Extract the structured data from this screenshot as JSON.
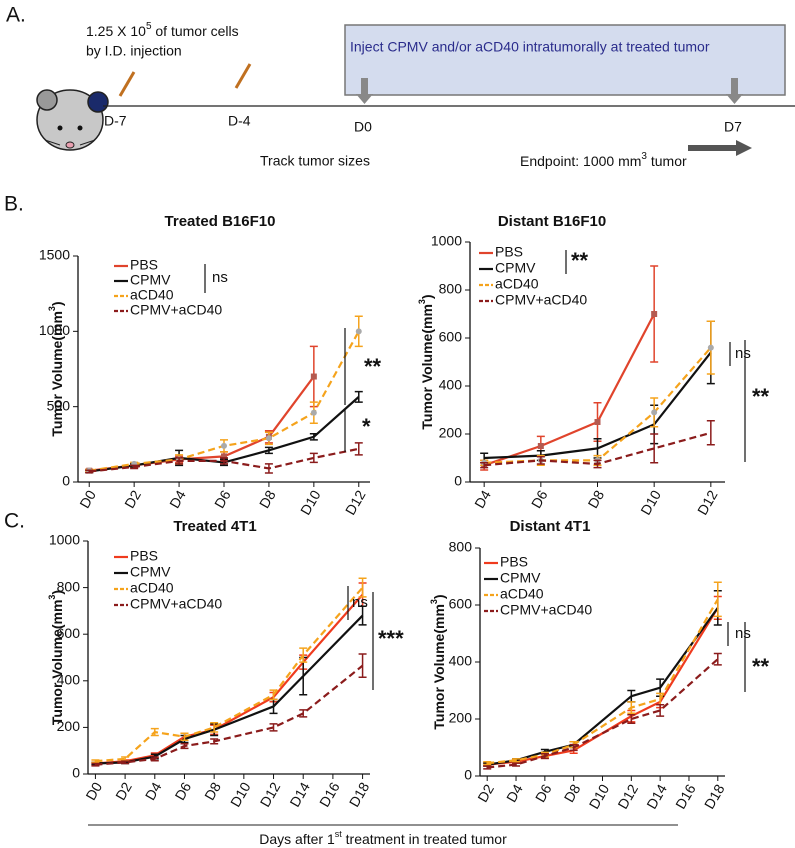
{
  "panel_labels": [
    "A.",
    "B.",
    "C."
  ],
  "panel_a": {
    "cells_pre": "1.25 X 10",
    "cells_sup": "5",
    "cells_post": " of tumor cells",
    "cells_line2": "by I.D. injection",
    "box_text": "Inject CPMV and/or aCD40 intratumorally at treated tumor",
    "timepoints": [
      "D-7",
      "D-4",
      "D0",
      "D7"
    ],
    "track": "Track tumor sizes",
    "endpoint_pre": "Endpoint: 1000 mm",
    "endpoint_sup": "3",
    "endpoint_post": " tumor"
  },
  "footer": {
    "pre": "Days after 1",
    "sup": "st",
    "post": " treatment in treated tumor"
  },
  "chart_data": [
    {
      "type": "line",
      "title": "Treated B16F10",
      "ylabel": "Tumor Volume(mm",
      "ylabel_sup": "3",
      "ylabel_end": ")",
      "x": [
        0,
        2,
        4,
        6,
        8,
        10,
        12
      ],
      "xlim": [
        -0.5,
        12.5
      ],
      "xticks": [
        {
          "value": 0,
          "label": "D0"
        },
        {
          "value": 2,
          "label": "D2"
        },
        {
          "value": 4,
          "label": "D4"
        },
        {
          "value": 6,
          "label": "D6"
        },
        {
          "value": 8,
          "label": "D8"
        },
        {
          "value": 10,
          "label": "D10"
        },
        {
          "value": 12,
          "label": "D12"
        }
      ],
      "ylim": [
        0,
        1500
      ],
      "yticks": [
        0,
        500,
        1000,
        1500
      ],
      "annotations": [
        "ns",
        "**",
        "*"
      ],
      "series": [
        {
          "name": "PBS",
          "color": "#e0442c",
          "dash": false,
          "marker": "square",
          "values": [
            75,
            110,
            150,
            170,
            300,
            700,
            null
          ],
          "errors": [
            10,
            15,
            20,
            30,
            40,
            200,
            null
          ]
        },
        {
          "name": "CPMV",
          "color": "#111111",
          "dash": false,
          "marker": "none",
          "values": [
            70,
            110,
            160,
            130,
            210,
            300,
            565
          ],
          "errors": [
            8,
            10,
            50,
            20,
            20,
            20,
            35
          ]
        },
        {
          "name": "aCD40",
          "color": "#f5a31c",
          "dash": true,
          "marker": "circle",
          "values": [
            75,
            120,
            150,
            240,
            290,
            460,
            1000
          ],
          "errors": [
            8,
            10,
            30,
            40,
            40,
            70,
            100
          ]
        },
        {
          "name": "CPMV+aCD40",
          "color": "#8b1c1c",
          "dash": true,
          "marker": "none",
          "values": [
            70,
            100,
            140,
            140,
            90,
            160,
            220
          ],
          "errors": [
            8,
            10,
            20,
            20,
            30,
            30,
            40
          ]
        }
      ]
    },
    {
      "type": "line",
      "title": "Distant B16F10",
      "ylabel": "Tumor Volume(mm",
      "ylabel_sup": "3",
      "ylabel_end": ")",
      "x": [
        4,
        6,
        8,
        10,
        12
      ],
      "xlim": [
        3.5,
        12.5
      ],
      "xticks": [
        {
          "value": 4,
          "label": "D4"
        },
        {
          "value": 6,
          "label": "D6"
        },
        {
          "value": 8,
          "label": "D8"
        },
        {
          "value": 10,
          "label": "D10"
        },
        {
          "value": 12,
          "label": "D12"
        }
      ],
      "ylim": [
        0,
        1000
      ],
      "yticks": [
        0,
        200,
        400,
        600,
        800,
        1000
      ],
      "annotations": [
        "**",
        "ns",
        "**"
      ],
      "series": [
        {
          "name": "PBS",
          "color": "#e0442c",
          "dash": false,
          "marker": "square",
          "values": [
            70,
            150,
            250,
            700,
            null
          ],
          "errors": [
            20,
            40,
            80,
            200,
            null
          ]
        },
        {
          "name": "CPMV",
          "color": "#111111",
          "dash": false,
          "marker": "none",
          "values": [
            100,
            110,
            140,
            240,
            540
          ],
          "errors": [
            20,
            20,
            40,
            80,
            130
          ]
        },
        {
          "name": "aCD40",
          "color": "#f5a31c",
          "dash": true,
          "marker": "circle",
          "values": [
            80,
            90,
            90,
            290,
            560
          ],
          "errors": [
            10,
            20,
            20,
            60,
            110
          ]
        },
        {
          "name": "CPMV+aCD40",
          "color": "#8b1c1c",
          "dash": true,
          "marker": "none",
          "values": [
            70,
            90,
            75,
            140,
            205
          ],
          "errors": [
            10,
            15,
            15,
            60,
            50
          ]
        }
      ]
    },
    {
      "type": "line",
      "title": "Treated  4T1",
      "ylabel": "Tumor Volume(mm",
      "ylabel_sup": "3",
      "ylabel_end": ")",
      "x": [
        0,
        2,
        4,
        6,
        8,
        12,
        14,
        18
      ],
      "xlim": [
        -0.5,
        18.5
      ],
      "xticks": [
        {
          "value": 0,
          "label": "D0"
        },
        {
          "value": 2,
          "label": "D2"
        },
        {
          "value": 4,
          "label": "D4"
        },
        {
          "value": 6,
          "label": "D6"
        },
        {
          "value": 8,
          "label": "D8"
        },
        {
          "value": 10,
          "label": "D10"
        },
        {
          "value": 12,
          "label": "D12"
        },
        {
          "value": 14,
          "label": "D14"
        },
        {
          "value": 16,
          "label": "D16"
        },
        {
          "value": 18,
          "label": "D18"
        }
      ],
      "ylim": [
        0,
        1000
      ],
      "yticks": [
        0,
        200,
        400,
        600,
        800,
        1000
      ],
      "annotations": [
        "ns",
        "***"
      ],
      "series": [
        {
          "name": "PBS",
          "color": "#ef3b1e",
          "dash": false,
          "marker": "none",
          "values": [
            45,
            55,
            80,
            160,
            190,
            330,
            480,
            770
          ],
          "errors": [
            5,
            5,
            10,
            15,
            20,
            20,
            30,
            50
          ]
        },
        {
          "name": "CPMV",
          "color": "#111111",
          "dash": false,
          "marker": "none",
          "values": [
            45,
            50,
            75,
            150,
            190,
            290,
            420,
            680
          ],
          "errors": [
            5,
            5,
            10,
            15,
            25,
            30,
            80,
            40
          ]
        },
        {
          "name": "aCD40",
          "color": "#f5a31c",
          "dash": true,
          "marker": "none",
          "values": [
            55,
            65,
            180,
            160,
            200,
            340,
            510,
            800
          ],
          "errors": [
            5,
            8,
            15,
            15,
            20,
            20,
            30,
            40
          ]
        },
        {
          "name": "CPMV+aCD40",
          "color": "#8b1c1c",
          "dash": true,
          "marker": "none",
          "values": [
            40,
            50,
            65,
            120,
            140,
            200,
            260,
            465
          ],
          "errors": [
            5,
            5,
            8,
            10,
            10,
            15,
            15,
            50
          ]
        }
      ]
    },
    {
      "type": "line",
      "title": "Distant 4T1",
      "ylabel": "Tumor Volume(mm",
      "ylabel_sup": "3",
      "ylabel_end": ")",
      "x": [
        2,
        4,
        6,
        8,
        12,
        14,
        18
      ],
      "xlim": [
        1.5,
        18.5
      ],
      "xticks": [
        {
          "value": 2,
          "label": "D2"
        },
        {
          "value": 4,
          "label": "D4"
        },
        {
          "value": 6,
          "label": "D6"
        },
        {
          "value": 8,
          "label": "D8"
        },
        {
          "value": 10,
          "label": "D10"
        },
        {
          "value": 12,
          "label": "D12"
        },
        {
          "value": 14,
          "label": "D14"
        },
        {
          "value": 16,
          "label": "D16"
        },
        {
          "value": 18,
          "label": "D18"
        }
      ],
      "ylim": [
        0,
        800
      ],
      "yticks": [
        0,
        200,
        400,
        600,
        800
      ],
      "annotations": [
        "ns",
        "**"
      ],
      "series": [
        {
          "name": "PBS",
          "color": "#ef3b1e",
          "dash": false,
          "marker": "none",
          "values": [
            40,
            50,
            70,
            90,
            210,
            260,
            590
          ],
          "errors": [
            5,
            5,
            8,
            10,
            20,
            20,
            40
          ]
        },
        {
          "name": "CPMV",
          "color": "#111111",
          "dash": false,
          "marker": "none",
          "values": [
            40,
            55,
            85,
            110,
            280,
            310,
            590
          ],
          "errors": [
            5,
            5,
            8,
            10,
            20,
            30,
            60
          ]
        },
        {
          "name": "aCD40",
          "color": "#f5a31c",
          "dash": true,
          "marker": "none",
          "values": [
            45,
            55,
            75,
            110,
            240,
            270,
            620
          ],
          "errors": [
            5,
            5,
            8,
            10,
            20,
            20,
            60
          ]
        },
        {
          "name": "CPMV+aCD40",
          "color": "#8b1c1c",
          "dash": true,
          "marker": "none",
          "values": [
            30,
            40,
            70,
            100,
            200,
            230,
            410
          ],
          "errors": [
            5,
            5,
            8,
            10,
            15,
            20,
            20
          ]
        }
      ]
    }
  ]
}
